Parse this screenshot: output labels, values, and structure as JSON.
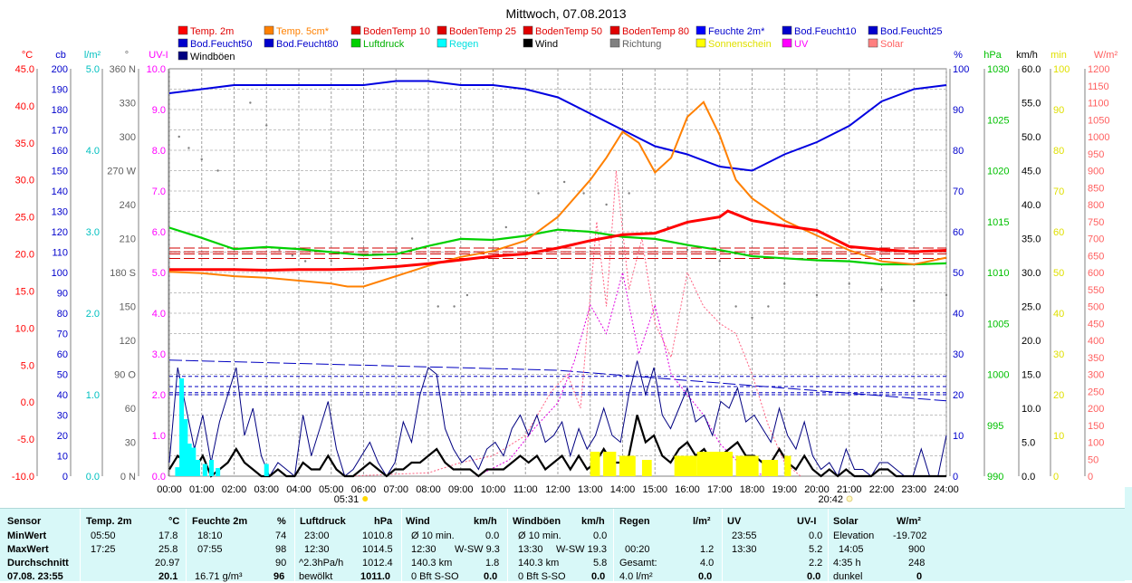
{
  "chart_data": {
    "type": "line",
    "title": "Mittwoch, 07.08.2013",
    "legend": [
      {
        "name": "Temp. 2m",
        "color": "#ff0000"
      },
      {
        "name": "Temp. 5cm*",
        "color": "#ff8000"
      },
      {
        "name": "BodenTemp 10",
        "color": "#e00000"
      },
      {
        "name": "BodenTemp 25",
        "color": "#e00000"
      },
      {
        "name": "BodenTemp 50",
        "color": "#e00000"
      },
      {
        "name": "BodenTemp 80",
        "color": "#e00000"
      },
      {
        "name": "Feuchte 2m*",
        "color": "#0000ff"
      },
      {
        "name": "Bod.Feucht10",
        "color": "#0000cc"
      },
      {
        "name": "Bod.Feucht25",
        "color": "#0000cc"
      },
      {
        "name": "Bod.Feucht50",
        "color": "#0000cc"
      },
      {
        "name": "Bod.Feucht80",
        "color": "#0000cc"
      },
      {
        "name": "Luftdruck",
        "color": "#00d000"
      },
      {
        "name": "Regen",
        "color": "#00ffff"
      },
      {
        "name": "Wind",
        "color": "#000000"
      },
      {
        "name": "Richtung",
        "color": "#808080"
      },
      {
        "name": "Sonnenschein",
        "color": "#ffff00"
      },
      {
        "name": "UV",
        "color": "#ff00ff"
      },
      {
        "name": "Solar",
        "color": "#ff8080"
      },
      {
        "name": "Windböen",
        "color": "#000080"
      }
    ],
    "left_axes": [
      {
        "unit": "°C",
        "color": "#ff0000",
        "range": [
          -10,
          45
        ],
        "ticks": [
          "45.0",
          "40.0",
          "35.0",
          "30.0",
          "25.0",
          "20.0",
          "15.0",
          "10.0",
          "5.0",
          "0.0",
          "-5.0",
          "-10.0"
        ]
      },
      {
        "unit": "cb",
        "color": "#0000cc",
        "range": [
          0,
          200
        ],
        "ticks": [
          "200",
          "190",
          "180",
          "170",
          "160",
          "150",
          "140",
          "130",
          "120",
          "110",
          "100",
          "90",
          "80",
          "70",
          "60",
          "50",
          "40",
          "30",
          "20",
          "10",
          "0"
        ]
      },
      {
        "unit": "l/m²",
        "color": "#00c0c0",
        "range": [
          0,
          5
        ],
        "ticks": [
          "5.0",
          "4.0",
          "3.0",
          "2.0",
          "1.0",
          "0.0"
        ]
      },
      {
        "unit": "°",
        "color": "#606060",
        "range": [
          0,
          360
        ],
        "ticks": [
          "360 N",
          "330",
          "300",
          "270 W",
          "240",
          "210",
          "180 S",
          "150",
          "120",
          "90 O",
          "60",
          "30",
          "0 N"
        ]
      },
      {
        "unit": "UV-I",
        "color": "#ff00ff",
        "range": [
          0,
          10
        ],
        "ticks": [
          "10.0",
          "9.0",
          "8.0",
          "7.0",
          "6.0",
          "5.0",
          "4.0",
          "3.0",
          "2.0",
          "1.0",
          "0.0"
        ]
      }
    ],
    "right_axes": [
      {
        "unit": "%",
        "color": "#0000cc",
        "range": [
          0,
          100
        ],
        "ticks": [
          "100",
          "90",
          "80",
          "70",
          "60",
          "50",
          "40",
          "30",
          "20",
          "10",
          "0"
        ]
      },
      {
        "unit": "hPa",
        "color": "#00c000",
        "range": [
          990,
          1030
        ],
        "ticks": [
          "1030",
          "1025",
          "1020",
          "1015",
          "1010",
          "1005",
          "1000",
          "995",
          "990"
        ]
      },
      {
        "unit": "km/h",
        "color": "#000000",
        "range": [
          0,
          60
        ],
        "ticks": [
          "60.0",
          "55.0",
          "50.0",
          "45.0",
          "40.0",
          "35.0",
          "30.0",
          "25.0",
          "20.0",
          "15.0",
          "10.0",
          "5.0",
          "0.0"
        ]
      },
      {
        "unit": "min",
        "color": "#e0e000",
        "range": [
          0,
          100
        ],
        "ticks": [
          "100",
          "90",
          "80",
          "70",
          "60",
          "50",
          "40",
          "30",
          "20",
          "10",
          "0"
        ]
      },
      {
        "unit": "W/m²",
        "color": "#ff6060",
        "range": [
          0,
          1200
        ],
        "ticks": [
          "1200",
          "1150",
          "1100",
          "1050",
          "1000",
          "950",
          "900",
          "850",
          "800",
          "750",
          "700",
          "650",
          "600",
          "550",
          "500",
          "450",
          "400",
          "350",
          "300",
          "250",
          "200",
          "150",
          "100",
          "50",
          "0"
        ]
      }
    ],
    "x_ticks": [
      "00:00",
      "01:00",
      "02:00",
      "03:00",
      "04:00",
      "05:00",
      "06:00",
      "07:00",
      "08:00",
      "09:00",
      "10:00",
      "11:00",
      "12:00",
      "13:00",
      "14:00",
      "15:00",
      "16:00",
      "17:00",
      "18:00",
      "19:00",
      "20:00",
      "21:00",
      "22:00",
      "23:00",
      "24:00"
    ],
    "sunrise": "05:31",
    "sunset": "20:42",
    "series": {
      "temp2m": {
        "hours": [
          0,
          1,
          2,
          3,
          4,
          5,
          6,
          7,
          8,
          9,
          10,
          11,
          12,
          13,
          14,
          15,
          16,
          17,
          17.25,
          18,
          19,
          20,
          21,
          22,
          23,
          24
        ],
        "values": [
          17.9,
          17.9,
          17.9,
          17.8,
          17.9,
          17.9,
          18.0,
          18.3,
          18.7,
          19.2,
          19.7,
          20.0,
          20.8,
          21.8,
          22.6,
          22.8,
          24.3,
          25.0,
          25.8,
          24.5,
          23.8,
          23.2,
          21.0,
          20.6,
          20.3,
          20.5
        ]
      },
      "temp5cm": {
        "hours": [
          0,
          1,
          2,
          3,
          4,
          5,
          5.5,
          6,
          7,
          8,
          9,
          10,
          11,
          12,
          13,
          13.5,
          14,
          14.5,
          15,
          15.5,
          16,
          16.5,
          17,
          17.5,
          18,
          19,
          20,
          21,
          22,
          23,
          24
        ],
        "values": [
          17.6,
          17.4,
          17.0,
          16.8,
          16.4,
          16.0,
          15.6,
          15.6,
          17.0,
          18.4,
          19.6,
          20.4,
          21.8,
          25.0,
          30.0,
          33.0,
          36.5,
          35.0,
          31.0,
          33.0,
          38.5,
          40.5,
          36.0,
          30.0,
          27.5,
          24.5,
          22.5,
          20.5,
          19.0,
          18.6,
          19.5
        ]
      },
      "feuchte2m": {
        "hours": [
          0,
          1,
          2,
          3,
          4,
          5,
          6,
          7,
          8,
          9,
          10,
          11,
          12,
          13,
          14,
          15,
          16,
          17,
          18,
          19,
          20,
          21,
          22,
          23,
          24
        ],
        "values": [
          94,
          95,
          96,
          96,
          96,
          96,
          96,
          97,
          97,
          96,
          96,
          95,
          93,
          89,
          85,
          81,
          79,
          76,
          75,
          79,
          82,
          86,
          92,
          95,
          96
        ]
      },
      "luftdruck": {
        "hours": [
          0,
          1,
          2,
          3,
          4,
          5,
          6,
          7,
          8,
          9,
          10,
          11,
          12,
          13,
          14,
          15,
          16,
          17,
          18,
          19,
          20,
          21,
          22,
          23,
          24
        ],
        "values": [
          1014.4,
          1013.4,
          1012.3,
          1012.5,
          1012.3,
          1012.0,
          1011.7,
          1011.8,
          1012.6,
          1013.3,
          1013.2,
          1013.6,
          1014.2,
          1014.0,
          1013.5,
          1013.3,
          1012.7,
          1012.2,
          1011.6,
          1011.4,
          1011.2,
          1011.1,
          1010.8,
          1010.8,
          1010.9
        ]
      },
      "bodfeucht10": {
        "hours": [
          0,
          12,
          24
        ],
        "values": [
          28.5,
          26,
          18.5
        ]
      },
      "bodentemp": [
        20.8,
        20.3,
        20.0,
        19.4
      ],
      "bodfeucht_levels": [
        24.5,
        22,
        20.5,
        20
      ]
    }
  },
  "stats": {
    "headers": {
      "sensor": "Sensor",
      "temp": "Temp. 2m",
      "temp_unit": "°C",
      "feuchte": "Feuchte 2m",
      "feuchte_unit": "%",
      "luft": "Luftdruck",
      "luft_unit": "hPa",
      "wind": "Wind",
      "wind_unit": "km/h",
      "boen": "Windböen",
      "boen_unit": "km/h",
      "regen": "Regen",
      "regen_unit": "l/m²",
      "uv": "UV",
      "uv_unit": "UV-I",
      "solar": "Solar",
      "solar_unit": "W/m²"
    },
    "row_min": {
      "label": "MinWert",
      "t_time": "05:50",
      "t_val": "17.8",
      "f_time": "18:10",
      "f_val": "74",
      "l_time": "23:00",
      "l_val": "1010.8",
      "w_label": "Ø 10 min.",
      "w_val": "0.0",
      "b_label": "Ø 10 min.",
      "b_val": "0.0",
      "uv_time": "23:55",
      "uv_val": "0.0",
      "s_label": "Elevation",
      "s_val": "-19.702"
    },
    "row_max": {
      "label": "MaxWert",
      "t_time": "17:25",
      "t_val": "25.8",
      "f_time": "07:55",
      "f_val": "98",
      "l_time": "12:30",
      "l_val": "1014.5",
      "w_time": "12:30",
      "w_dir": "W-SW 9.3",
      "b_time": "13:30",
      "b_dir": "W-SW 19.3",
      "r_time": "00:20",
      "r_val": "1.2",
      "uv_time": "13:30",
      "uv_val": "5.2",
      "s_time": "14:05",
      "s_val": "900"
    },
    "row_avg": {
      "label": "Durchschnitt",
      "t_val": "20.97",
      "f_val": "90",
      "l_info": "^2.3hPa/h",
      "l_val": "1012.4",
      "w_dist": "140.3 km",
      "w_val": "1.8",
      "b_dist": "140.3 km",
      "b_val": "5.8",
      "r_label": "Gesamt:",
      "r_val": "4.0",
      "uv_val": "2.2",
      "s_label": "4:35 h",
      "s_val": "248"
    },
    "row_cur": {
      "label": "07.08. 23:55",
      "t_val": "20.1",
      "f_val": "16.71 g/m³",
      "f_pct": "96",
      "l_info": "bewölkt",
      "l_val": "1011.0",
      "w_info": "0 Bft S-SO",
      "w_val": "0.0",
      "b_info": "0 Bft S-SO",
      "b_val": "0.0",
      "r_info": "4.0 l/m²",
      "r_val": "0.0",
      "uv_val": "0.0",
      "s_label": "dunkel",
      "s_val": "0"
    }
  }
}
